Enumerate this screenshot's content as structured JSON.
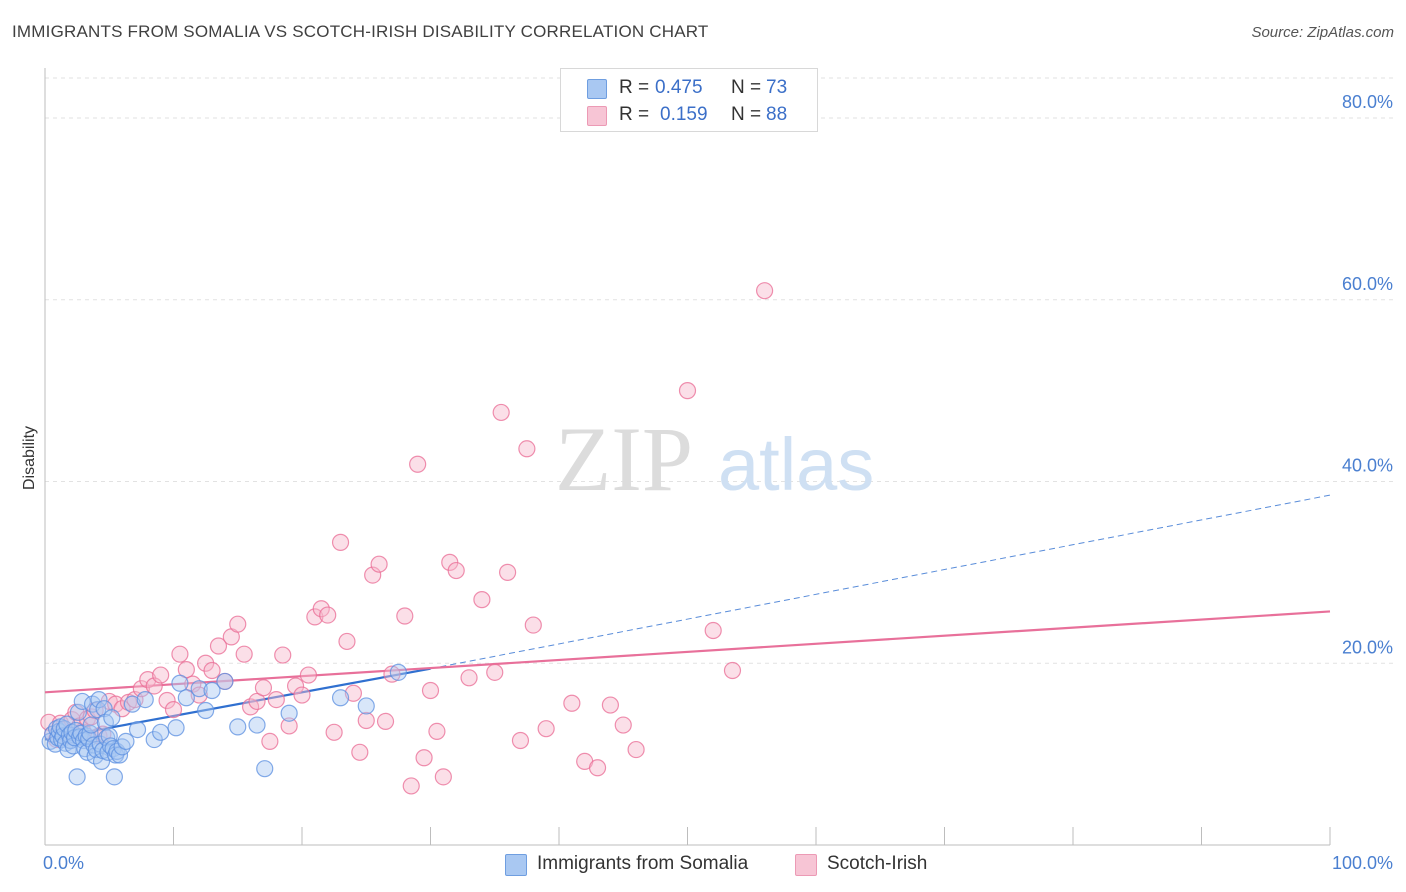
{
  "header": {
    "title": "IMMIGRANTS FROM SOMALIA VS SCOTCH-IRISH DISABILITY CORRELATION CHART",
    "source": "Source: ZipAtlas.com"
  },
  "watermark": {
    "part1": "ZIP",
    "part2": "atlas"
  },
  "legend": {
    "rows": [
      {
        "r_label": "R =",
        "r_value": "0.475",
        "n_label": "N =",
        "n_value": "73",
        "color": "#a9c8f2"
      },
      {
        "r_label": "R =",
        "r_value": "0.159",
        "n_label": "N =",
        "n_value": "88",
        "color": "#f7b9cc"
      }
    ]
  },
  "bottom_legend": {
    "items": [
      {
        "label": "Immigrants from Somalia",
        "color": "#a9c8f2"
      },
      {
        "label": "Scotch-Irish",
        "color": "#f7b9cc"
      }
    ]
  },
  "chart_data": {
    "type": "scatter",
    "title": "IMMIGRANTS FROM SOMALIA VS SCOTCH-IRISH DISABILITY CORRELATION CHART",
    "ylabel": "Disability",
    "xlabel": "",
    "xlim": [
      0,
      100
    ],
    "ylim": [
      0,
      80
    ],
    "x_tick_labels": [
      "0.0%",
      "100.0%"
    ],
    "y_tick_labels": [
      "20.0%",
      "40.0%",
      "60.0%",
      "80.0%"
    ],
    "y_tick_values": [
      20,
      40,
      60,
      80
    ],
    "grid": "horizontal dashed",
    "legend_position": "top-center",
    "series": [
      {
        "name": "Immigrants from Somalia",
        "color": "#5b8fe0",
        "fill": "#a9c8f2",
        "points": [
          [
            0.4,
            11.4
          ],
          [
            0.6,
            12.2
          ],
          [
            0.8,
            11.1
          ],
          [
            0.9,
            12.8
          ],
          [
            1.0,
            11.8
          ],
          [
            1.1,
            12.5
          ],
          [
            1.2,
            13.0
          ],
          [
            1.3,
            11.6
          ],
          [
            1.4,
            12.0
          ],
          [
            1.5,
            12.8
          ],
          [
            1.6,
            11.2
          ],
          [
            1.7,
            13.3
          ],
          [
            1.8,
            10.5
          ],
          [
            1.9,
            12.1
          ],
          [
            2.0,
            11.5
          ],
          [
            2.1,
            12.4
          ],
          [
            2.2,
            10.9
          ],
          [
            2.3,
            11.8
          ],
          [
            2.4,
            12.6
          ],
          [
            2.5,
            7.5
          ],
          [
            2.6,
            14.6
          ],
          [
            2.7,
            11.9
          ],
          [
            2.8,
            12.3
          ],
          [
            2.9,
            15.8
          ],
          [
            3.0,
            11.5
          ],
          [
            3.1,
            10.6
          ],
          [
            3.2,
            12.0
          ],
          [
            3.3,
            10.2
          ],
          [
            3.4,
            11.7
          ],
          [
            3.5,
            12.3
          ],
          [
            3.6,
            13.2
          ],
          [
            3.7,
            15.5
          ],
          [
            3.8,
            11.0
          ],
          [
            3.9,
            9.8
          ],
          [
            4.0,
            10.5
          ],
          [
            4.1,
            14.9
          ],
          [
            4.2,
            16.0
          ],
          [
            4.3,
            11.1
          ],
          [
            4.4,
            9.2
          ],
          [
            4.5,
            10.4
          ],
          [
            4.6,
            15.0
          ],
          [
            4.7,
            13.5
          ],
          [
            4.8,
            11.8
          ],
          [
            4.9,
            10.2
          ],
          [
            5.0,
            12.0
          ],
          [
            5.1,
            10.9
          ],
          [
            5.2,
            14.0
          ],
          [
            5.3,
            10.6
          ],
          [
            5.4,
            7.5
          ],
          [
            5.5,
            9.9
          ],
          [
            5.6,
            10.3
          ],
          [
            5.8,
            9.9
          ],
          [
            6.0,
            10.8
          ],
          [
            6.3,
            11.4
          ],
          [
            6.8,
            15.5
          ],
          [
            7.2,
            12.7
          ],
          [
            7.8,
            16.0
          ],
          [
            8.5,
            11.6
          ],
          [
            9.0,
            12.4
          ],
          [
            10.2,
            12.9
          ],
          [
            11.0,
            16.2
          ],
          [
            12.0,
            17.2
          ],
          [
            13.0,
            17.0
          ],
          [
            12.5,
            14.8
          ],
          [
            10.5,
            17.8
          ],
          [
            14.0,
            18.0
          ],
          [
            15.0,
            13.0
          ],
          [
            16.5,
            13.2
          ],
          [
            17.1,
            8.4
          ],
          [
            19.0,
            14.5
          ],
          [
            23.0,
            16.2
          ],
          [
            25.0,
            15.3
          ],
          [
            27.5,
            19.0
          ]
        ]
      },
      {
        "name": "Scotch-Irish",
        "color": "#e96b94",
        "fill": "#f7b9cc",
        "points": [
          [
            0.3,
            13.5
          ],
          [
            0.6,
            12.2
          ],
          [
            0.9,
            11.6
          ],
          [
            1.2,
            13.4
          ],
          [
            1.5,
            12.7
          ],
          [
            1.8,
            12.0
          ],
          [
            2.1,
            13.8
          ],
          [
            2.4,
            14.6
          ],
          [
            2.7,
            13.1
          ],
          [
            3.0,
            12.4
          ],
          [
            3.3,
            13.9
          ],
          [
            3.6,
            14.1
          ],
          [
            3.9,
            14.8
          ],
          [
            4.2,
            12.0
          ],
          [
            4.5,
            12.2
          ],
          [
            5.0,
            15.8
          ],
          [
            5.5,
            15.5
          ],
          [
            6.0,
            15.0
          ],
          [
            6.5,
            15.7
          ],
          [
            7.0,
            16.0
          ],
          [
            7.5,
            17.2
          ],
          [
            8.0,
            18.2
          ],
          [
            8.5,
            17.5
          ],
          [
            9.0,
            18.7
          ],
          [
            9.5,
            15.9
          ],
          [
            10.0,
            14.9
          ],
          [
            10.5,
            21.0
          ],
          [
            11.0,
            19.3
          ],
          [
            11.5,
            17.7
          ],
          [
            12.0,
            16.5
          ],
          [
            12.5,
            20.0
          ],
          [
            13.0,
            19.2
          ],
          [
            13.5,
            21.9
          ],
          [
            14.0,
            18.0
          ],
          [
            14.5,
            22.9
          ],
          [
            15.0,
            24.3
          ],
          [
            15.5,
            21.0
          ],
          [
            16.0,
            15.2
          ],
          [
            16.5,
            15.8
          ],
          [
            17.0,
            17.3
          ],
          [
            17.5,
            11.4
          ],
          [
            18.0,
            16.0
          ],
          [
            18.5,
            20.9
          ],
          [
            19.0,
            13.1
          ],
          [
            19.5,
            17.5
          ],
          [
            20.0,
            16.5
          ],
          [
            20.5,
            18.7
          ],
          [
            21.0,
            25.1
          ],
          [
            21.5,
            26.0
          ],
          [
            22.0,
            25.3
          ],
          [
            22.5,
            12.4
          ],
          [
            23.0,
            33.3
          ],
          [
            23.5,
            22.4
          ],
          [
            24.0,
            16.7
          ],
          [
            24.5,
            10.2
          ],
          [
            25.0,
            13.7
          ],
          [
            25.5,
            29.7
          ],
          [
            26.0,
            30.9
          ],
          [
            26.5,
            13.6
          ],
          [
            27.0,
            18.8
          ],
          [
            28.0,
            25.2
          ],
          [
            28.5,
            6.5
          ],
          [
            29.0,
            41.9
          ],
          [
            29.5,
            9.6
          ],
          [
            30.0,
            17.0
          ],
          [
            30.5,
            12.5
          ],
          [
            31.0,
            7.5
          ],
          [
            31.5,
            31.1
          ],
          [
            32.0,
            30.2
          ],
          [
            33.0,
            18.4
          ],
          [
            34.0,
            27.0
          ],
          [
            35.0,
            19.0
          ],
          [
            35.5,
            47.6
          ],
          [
            36.0,
            30.0
          ],
          [
            37.0,
            11.5
          ],
          [
            38.0,
            24.2
          ],
          [
            37.5,
            43.6
          ],
          [
            39.0,
            12.8
          ],
          [
            41.0,
            15.6
          ],
          [
            42.0,
            9.2
          ],
          [
            43.0,
            8.5
          ],
          [
            44.0,
            15.4
          ],
          [
            45.0,
            13.2
          ],
          [
            46.0,
            10.5
          ],
          [
            50.0,
            50.0
          ],
          [
            52.0,
            23.6
          ],
          [
            53.5,
            19.2
          ],
          [
            56.0,
            61.0
          ]
        ]
      }
    ],
    "trend_lines": [
      {
        "series": "Immigrants from Somalia",
        "from": [
          0,
          11.6
        ],
        "to": [
          30,
          19.4
        ],
        "extended_to": [
          100,
          38.5
        ],
        "extended_style": "dashed"
      },
      {
        "series": "Scotch-Irish",
        "from": [
          0,
          16.8
        ],
        "to": [
          100,
          25.7
        ]
      }
    ]
  }
}
